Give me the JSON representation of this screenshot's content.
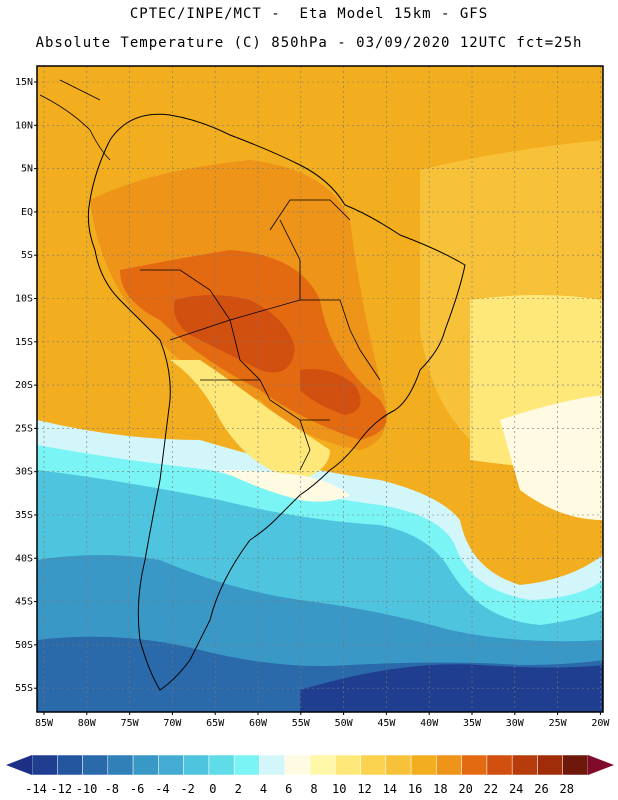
{
  "header": {
    "line1": "CPTEC/INPE/MCT -  Eta Model 15km - GFS",
    "line2": "Absolute Temperature (C) 850hPa - 03/09/2020 12UTC fct=25h"
  },
  "map": {
    "lat_labels": [
      "15N",
      "10N",
      "5N",
      "EQ",
      "5S",
      "10S",
      "15S",
      "20S",
      "25S",
      "30S",
      "35S",
      "40S",
      "45S",
      "50S",
      "55S"
    ],
    "lon_labels": [
      "85W",
      "80W",
      "75W",
      "70W",
      "65W",
      "60W",
      "55W",
      "50W",
      "45W",
      "40W",
      "35W",
      "30W",
      "25W",
      "20W"
    ]
  },
  "colorbar": {
    "labels": [
      "-14",
      "-12",
      "-10",
      "-8",
      "-6",
      "-4",
      "-2",
      "0",
      "2",
      "4",
      "6",
      "8",
      "10",
      "12",
      "14",
      "16",
      "18",
      "20",
      "22",
      "24",
      "26",
      "28"
    ],
    "colors": [
      "#1f3e8f",
      "#2456a0",
      "#2a6aab",
      "#3181b8",
      "#3a98c6",
      "#44acd2",
      "#4fc4de",
      "#5fdce8",
      "#7af4f4",
      "#d3f6fb",
      "#fffbe2",
      "#fff7a8",
      "#ffe87a",
      "#fcd34f",
      "#f7c23a",
      "#f2ae1f",
      "#ee9418",
      "#e46a12",
      "#d1500f",
      "#b73c0c",
      "#a12c0a",
      "#6e170b"
    ],
    "low_color": "#1b2f85",
    "high_color": "#800a2a"
  },
  "field_colors": {
    "ocean_deep": "#1f3e8f",
    "cold1": "#2a6aab",
    "cold2": "#3a98c6",
    "cold3": "#4fc4de",
    "cyan": "#7af4f4",
    "pale": "#d3f6fb",
    "cream": "#fffbe2",
    "yellow": "#ffe87a",
    "gold": "#f7c23a",
    "orange": "#f2ae1f",
    "dark_orange": "#ee9418",
    "hot": "#e46a12",
    "hotter": "#d1500f"
  }
}
